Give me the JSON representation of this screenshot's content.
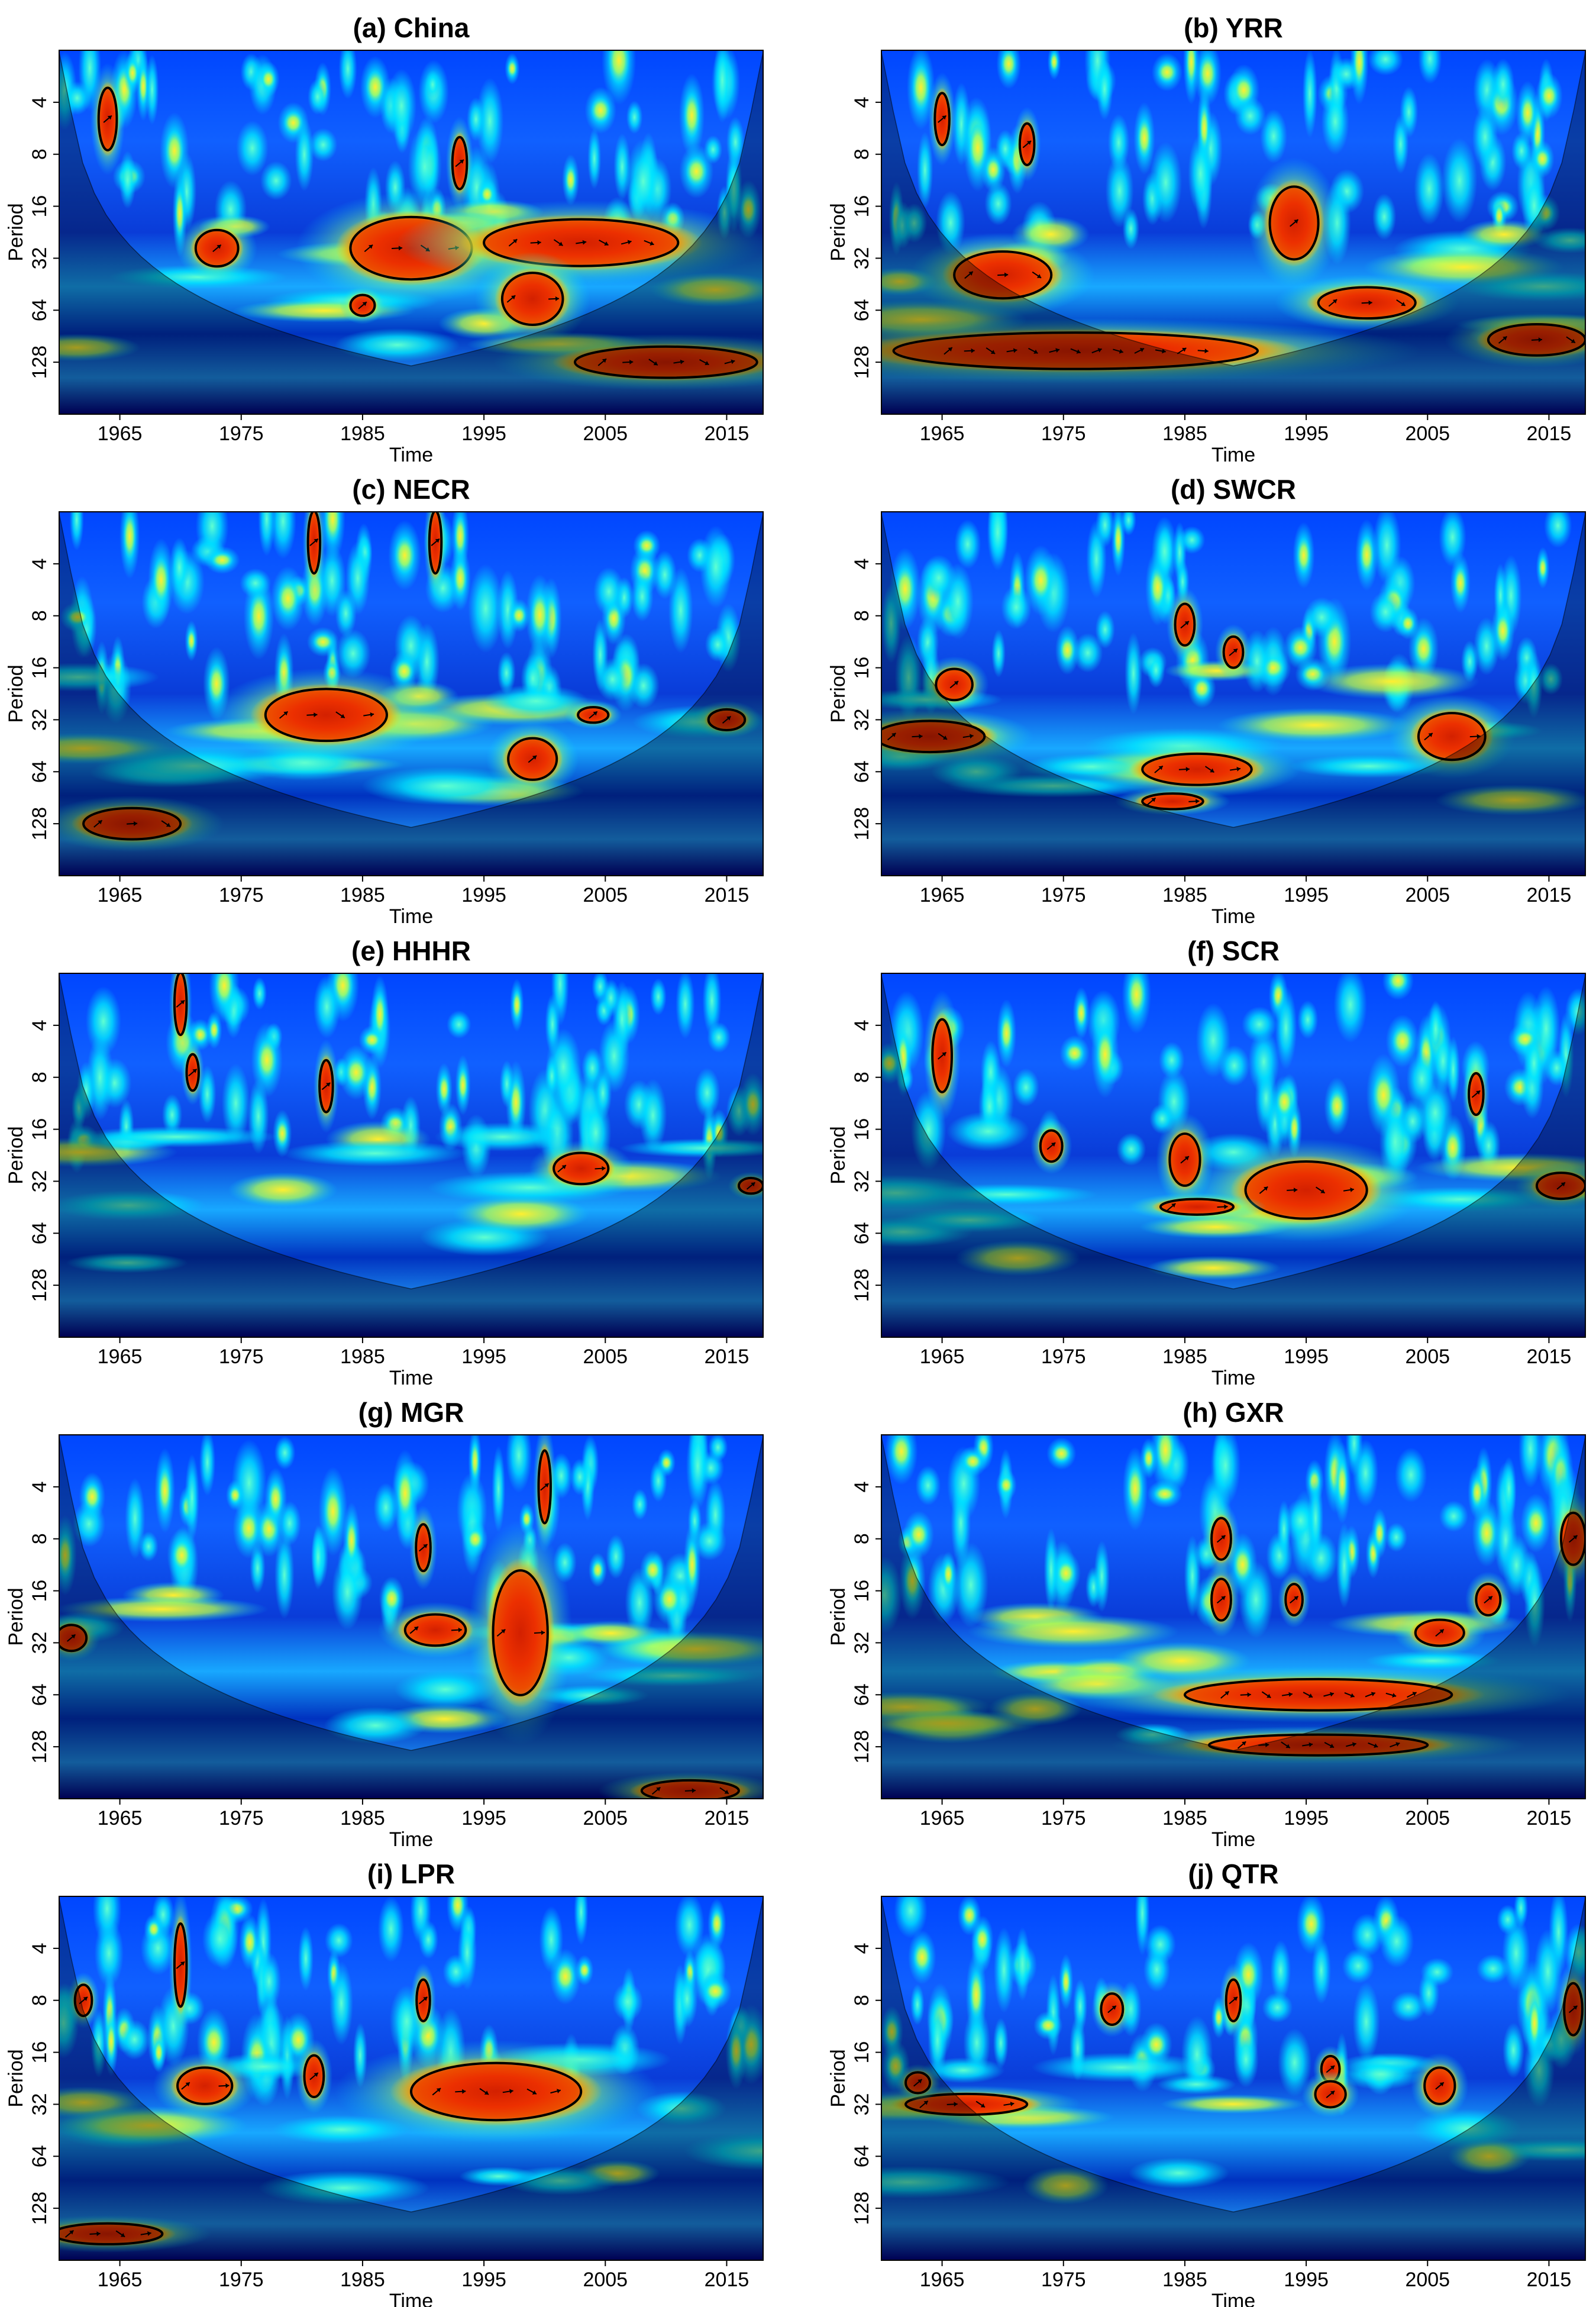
{
  "figure": {
    "colors": {
      "low": "#00007f",
      "mid_low": "#0046ff",
      "mid": "#00e5ff",
      "mid_high": "#e8f020",
      "high": "#ff7a00",
      "peak": "#c81800",
      "coi_shade": "rgba(0,0,0,0.35)",
      "contour": "#000000"
    }
  },
  "chart_data": [
    {
      "type": "heatmap",
      "title": "(a) China",
      "xlabel": "Time",
      "ylabel": "Period",
      "x_ticks": [
        "1965",
        "1975",
        "1985",
        "1995",
        "2005",
        "2015"
      ],
      "y_ticks": [
        "4",
        "8",
        "16",
        "32",
        "64",
        "128"
      ],
      "y_scale": "log2",
      "xlim": [
        1960,
        2018
      ],
      "ylim": [
        2,
        256
      ],
      "significant_regions": [
        {
          "x_center": 1964,
          "period": 5,
          "width": 1.5,
          "height_octaves": 0.6
        },
        {
          "x_center": 1973,
          "period": 28,
          "width": 3.5,
          "height_octaves": 0.35
        },
        {
          "x_center": 1989,
          "period": 28,
          "width": 10,
          "height_octaves": 0.6
        },
        {
          "x_center": 2003,
          "period": 26,
          "width": 16,
          "height_octaves": 0.45
        },
        {
          "x_center": 1999,
          "period": 55,
          "width": 5,
          "height_octaves": 0.5
        },
        {
          "x_center": 1985,
          "period": 60,
          "width": 2,
          "height_octaves": 0.2
        },
        {
          "x_center": 2010,
          "period": 128,
          "width": 15,
          "height_octaves": 0.3
        },
        {
          "x_center": 1993,
          "period": 9,
          "width": 1.2,
          "height_octaves": 0.5
        }
      ]
    },
    {
      "type": "heatmap",
      "title": "(b) YRR",
      "xlabel": "Time",
      "ylabel": "Period",
      "x_ticks": [
        "1965",
        "1975",
        "1985",
        "1995",
        "2005",
        "2015"
      ],
      "y_ticks": [
        "4",
        "8",
        "16",
        "32",
        "64",
        "128"
      ],
      "y_scale": "log2",
      "xlim": [
        1960,
        2018
      ],
      "ylim": [
        2,
        256
      ],
      "significant_regions": [
        {
          "x_center": 1970,
          "period": 40,
          "width": 8,
          "height_octaves": 0.45
        },
        {
          "x_center": 1994,
          "period": 20,
          "width": 4,
          "height_octaves": 0.7
        },
        {
          "x_center": 2000,
          "period": 58,
          "width": 8,
          "height_octaves": 0.3
        },
        {
          "x_center": 1976,
          "period": 110,
          "width": 30,
          "height_octaves": 0.35
        },
        {
          "x_center": 2014,
          "period": 95,
          "width": 8,
          "height_octaves": 0.3
        },
        {
          "x_center": 1965,
          "period": 5,
          "width": 1.2,
          "height_octaves": 0.5
        },
        {
          "x_center": 1972,
          "period": 7,
          "width": 1.2,
          "height_octaves": 0.4
        }
      ]
    },
    {
      "type": "heatmap",
      "title": "(c) NECR",
      "xlabel": "Time",
      "ylabel": "Period",
      "x_ticks": [
        "1965",
        "1975",
        "1985",
        "1995",
        "2005",
        "2015"
      ],
      "y_ticks": [
        "4",
        "8",
        "16",
        "32",
        "64",
        "128"
      ],
      "y_scale": "log2",
      "xlim": [
        1960,
        2018
      ],
      "ylim": [
        2,
        256
      ],
      "significant_regions": [
        {
          "x_center": 1982,
          "period": 30,
          "width": 10,
          "height_octaves": 0.5
        },
        {
          "x_center": 1999,
          "period": 54,
          "width": 4,
          "height_octaves": 0.4
        },
        {
          "x_center": 2004,
          "period": 30,
          "width": 2.5,
          "height_octaves": 0.15
        },
        {
          "x_center": 2015,
          "period": 32,
          "width": 3,
          "height_octaves": 0.2
        },
        {
          "x_center": 1966,
          "period": 128,
          "width": 8,
          "height_octaves": 0.3
        },
        {
          "x_center": 1981,
          "period": 3,
          "width": 1,
          "height_octaves": 0.6
        },
        {
          "x_center": 1991,
          "period": 3,
          "width": 1,
          "height_octaves": 0.6
        }
      ]
    },
    {
      "type": "heatmap",
      "title": "(d) SWCR",
      "xlabel": "Time",
      "ylabel": "Period",
      "x_ticks": [
        "1965",
        "1975",
        "1985",
        "1995",
        "2005",
        "2015"
      ],
      "y_ticks": [
        "4",
        "8",
        "16",
        "32",
        "64",
        "128"
      ],
      "y_scale": "log2",
      "xlim": [
        1960,
        2018
      ],
      "ylim": [
        2,
        256
      ],
      "significant_regions": [
        {
          "x_center": 1966,
          "period": 20,
          "width": 3,
          "height_octaves": 0.3
        },
        {
          "x_center": 1964,
          "period": 40,
          "width": 9,
          "height_octaves": 0.3
        },
        {
          "x_center": 1985,
          "period": 9,
          "width": 1.6,
          "height_octaves": 0.4
        },
        {
          "x_center": 1989,
          "period": 13,
          "width": 1.6,
          "height_octaves": 0.3
        },
        {
          "x_center": 2007,
          "period": 40,
          "width": 5.5,
          "height_octaves": 0.45
        },
        {
          "x_center": 1986,
          "period": 62,
          "width": 9,
          "height_octaves": 0.3
        },
        {
          "x_center": 1984,
          "period": 95,
          "width": 5,
          "height_octaves": 0.15
        }
      ]
    },
    {
      "type": "heatmap",
      "title": "(e) HHHR",
      "xlabel": "Time",
      "ylabel": "Period",
      "x_ticks": [
        "1965",
        "1975",
        "1985",
        "1995",
        "2005",
        "2015"
      ],
      "y_ticks": [
        "4",
        "8",
        "16",
        "32",
        "64",
        "128"
      ],
      "y_scale": "log2",
      "xlim": [
        1960,
        2018
      ],
      "ylim": [
        2,
        256
      ],
      "significant_regions": [
        {
          "x_center": 2003,
          "period": 27,
          "width": 4.5,
          "height_octaves": 0.3
        },
        {
          "x_center": 1971,
          "period": 7.5,
          "width": 1,
          "height_octaves": 0.35
        },
        {
          "x_center": 1982,
          "period": 9,
          "width": 1.1,
          "height_octaves": 0.5
        },
        {
          "x_center": 1970,
          "period": 3,
          "width": 1,
          "height_octaves": 0.6
        },
        {
          "x_center": 2017,
          "period": 34,
          "width": 2,
          "height_octaves": 0.15
        }
      ]
    },
    {
      "type": "heatmap",
      "title": "(f) SCR",
      "xlabel": "Time",
      "ylabel": "Period",
      "x_ticks": [
        "1965",
        "1975",
        "1985",
        "1995",
        "2005",
        "2015"
      ],
      "y_ticks": [
        "4",
        "8",
        "16",
        "32",
        "64",
        "128"
      ],
      "y_scale": "log2",
      "xlim": [
        1960,
        2018
      ],
      "ylim": [
        2,
        256
      ],
      "significant_regions": [
        {
          "x_center": 1965,
          "period": 6,
          "width": 1.6,
          "height_octaves": 0.7
        },
        {
          "x_center": 1974,
          "period": 20,
          "width": 1.8,
          "height_octaves": 0.3
        },
        {
          "x_center": 1985,
          "period": 24,
          "width": 2.5,
          "height_octaves": 0.5
        },
        {
          "x_center": 1995,
          "period": 36,
          "width": 10,
          "height_octaves": 0.55
        },
        {
          "x_center": 1986,
          "period": 45,
          "width": 6,
          "height_octaves": 0.15
        },
        {
          "x_center": 2009,
          "period": 10,
          "width": 1.2,
          "height_octaves": 0.4
        },
        {
          "x_center": 2016,
          "period": 34,
          "width": 4,
          "height_octaves": 0.25
        }
      ]
    },
    {
      "type": "heatmap",
      "title": "(g) MGR",
      "xlabel": "Time",
      "ylabel": "Period",
      "x_ticks": [
        "1965",
        "1975",
        "1985",
        "1995",
        "2005",
        "2015"
      ],
      "y_ticks": [
        "4",
        "8",
        "16",
        "32",
        "64",
        "128"
      ],
      "y_scale": "log2",
      "xlim": [
        1960,
        2018
      ],
      "ylim": [
        2,
        256
      ],
      "significant_regions": [
        {
          "x_center": 1991,
          "period": 27,
          "width": 5,
          "height_octaves": 0.3
        },
        {
          "x_center": 1998,
          "period": 28,
          "width": 4.5,
          "height_octaves": 1.2
        },
        {
          "x_center": 1961,
          "period": 30,
          "width": 2.5,
          "height_octaves": 0.25
        },
        {
          "x_center": 1990,
          "period": 9,
          "width": 1.2,
          "height_octaves": 0.45
        },
        {
          "x_center": 2000,
          "period": 4,
          "width": 1,
          "height_octaves": 0.7
        },
        {
          "x_center": 2012,
          "period": 230,
          "width": 8,
          "height_octaves": 0.2
        }
      ]
    },
    {
      "type": "heatmap",
      "title": "(h) GXR",
      "xlabel": "Time",
      "ylabel": "Period",
      "x_ticks": [
        "1965",
        "1975",
        "1985",
        "1995",
        "2005",
        "2015"
      ],
      "y_ticks": [
        "4",
        "8",
        "16",
        "32",
        "64",
        "128"
      ],
      "y_scale": "log2",
      "xlim": [
        1960,
        2018
      ],
      "ylim": [
        2,
        256
      ],
      "significant_regions": [
        {
          "x_center": 1996,
          "period": 64,
          "width": 22,
          "height_octaves": 0.3
        },
        {
          "x_center": 1996,
          "period": 125,
          "width": 18,
          "height_octaves": 0.2
        },
        {
          "x_center": 1988,
          "period": 18,
          "width": 1.6,
          "height_octaves": 0.4
        },
        {
          "x_center": 1988,
          "period": 8,
          "width": 1.6,
          "height_octaves": 0.4
        },
        {
          "x_center": 2006,
          "period": 28,
          "width": 4,
          "height_octaves": 0.25
        },
        {
          "x_center": 2010,
          "period": 18,
          "width": 2,
          "height_octaves": 0.3
        },
        {
          "x_center": 1994,
          "period": 18,
          "width": 1.4,
          "height_octaves": 0.3
        },
        {
          "x_center": 2017,
          "period": 8,
          "width": 2,
          "height_octaves": 0.5
        }
      ]
    },
    {
      "type": "heatmap",
      "title": "(i) LPR",
      "xlabel": "Time",
      "ylabel": "Period",
      "x_ticks": [
        "1965",
        "1975",
        "1985",
        "1995",
        "2005",
        "2015"
      ],
      "y_ticks": [
        "4",
        "8",
        "16",
        "32",
        "64",
        "128"
      ],
      "y_scale": "log2",
      "xlim": [
        1960,
        2018
      ],
      "ylim": [
        2,
        256
      ],
      "significant_regions": [
        {
          "x_center": 1972,
          "period": 25,
          "width": 4.5,
          "height_octaves": 0.35
        },
        {
          "x_center": 1981,
          "period": 22,
          "width": 1.6,
          "height_octaves": 0.4
        },
        {
          "x_center": 1996,
          "period": 27,
          "width": 14,
          "height_octaves": 0.55
        },
        {
          "x_center": 1962,
          "period": 8,
          "width": 1.4,
          "height_octaves": 0.3
        },
        {
          "x_center": 1990,
          "period": 8,
          "width": 1.1,
          "height_octaves": 0.4
        },
        {
          "x_center": 1970,
          "period": 5,
          "width": 1,
          "height_octaves": 0.8
        },
        {
          "x_center": 1964,
          "period": 180,
          "width": 9,
          "height_octaves": 0.2
        }
      ]
    },
    {
      "type": "heatmap",
      "title": "(j) QTR",
      "xlabel": "Time",
      "ylabel": "Period",
      "x_ticks": [
        "1965",
        "1975",
        "1985",
        "1995",
        "2005",
        "2015"
      ],
      "y_ticks": [
        "4",
        "8",
        "16",
        "32",
        "64",
        "128"
      ],
      "y_scale": "log2",
      "xlim": [
        1960,
        2018
      ],
      "ylim": [
        2,
        256
      ],
      "significant_regions": [
        {
          "x_center": 1967,
          "period": 32,
          "width": 10,
          "height_octaves": 0.2
        },
        {
          "x_center": 1963,
          "period": 24,
          "width": 2,
          "height_octaves": 0.2
        },
        {
          "x_center": 1979,
          "period": 9,
          "width": 1.8,
          "height_octaves": 0.3
        },
        {
          "x_center": 1989,
          "period": 8,
          "width": 1.2,
          "height_octaves": 0.4
        },
        {
          "x_center": 1997,
          "period": 20,
          "width": 1.5,
          "height_octaves": 0.25
        },
        {
          "x_center": 1997,
          "period": 28,
          "width": 2.5,
          "height_octaves": 0.25
        },
        {
          "x_center": 2006,
          "period": 25,
          "width": 2.5,
          "height_octaves": 0.35
        },
        {
          "x_center": 2017,
          "period": 9,
          "width": 1.5,
          "height_octaves": 0.5
        }
      ]
    }
  ]
}
